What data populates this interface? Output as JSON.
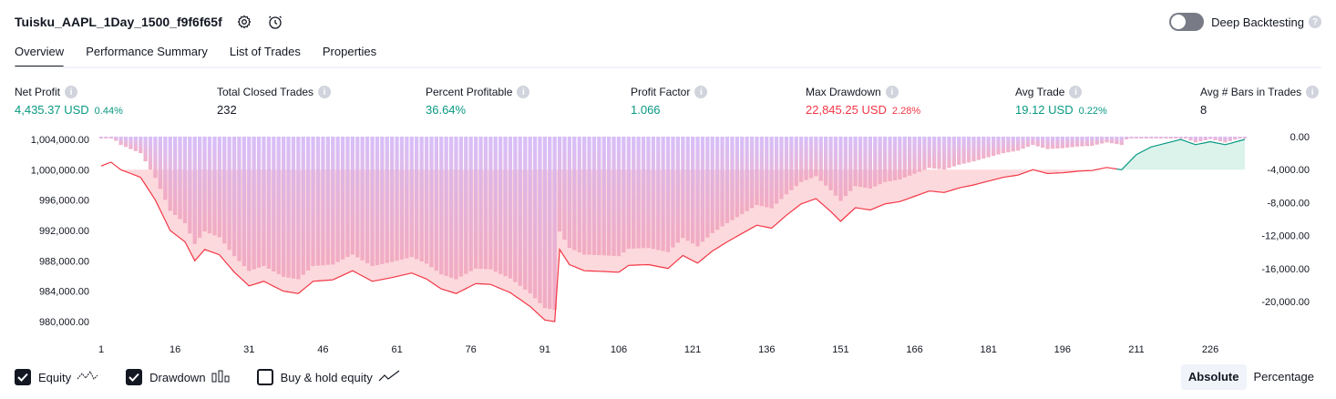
{
  "header": {
    "title": "Tuisku_AAPL_1Day_1500_f9f6f65f",
    "deep_backtesting_label": "Deep Backtesting",
    "deep_backtesting_enabled": false
  },
  "tabs": [
    {
      "label": "Overview",
      "active": true
    },
    {
      "label": "Performance Summary",
      "active": false
    },
    {
      "label": "List of Trades",
      "active": false
    },
    {
      "label": "Properties",
      "active": false
    }
  ],
  "metrics": {
    "net_profit": {
      "label": "Net Profit",
      "value": "4,435.37 USD",
      "pct": "0.44%"
    },
    "total_closed_trades": {
      "label": "Total Closed Trades",
      "value": "232"
    },
    "percent_profitable": {
      "label": "Percent Profitable",
      "value": "36.64%"
    },
    "profit_factor": {
      "label": "Profit Factor",
      "value": "1.066"
    },
    "max_drawdown": {
      "label": "Max Drawdown",
      "value": "22,845.25 USD",
      "pct": "2.28%"
    },
    "avg_trade": {
      "label": "Avg Trade",
      "value": "19.12 USD",
      "pct": "0.22%"
    },
    "avg_bars": {
      "label": "Avg # Bars in Trades",
      "value": "8"
    }
  },
  "chart_data": {
    "type": "area",
    "left_axis_ticks": [
      "1,004,000.00",
      "1,000,000.00",
      "996,000.00",
      "992,000.00",
      "988,000.00",
      "984,000.00",
      "980,000.00"
    ],
    "left_axis_values": [
      1004000,
      1000000,
      996000,
      992000,
      988000,
      984000,
      980000
    ],
    "right_axis_ticks": [
      "0.00",
      "-4,000.00",
      "-8,000.00",
      "-12,000.00",
      "-16,000.00",
      "-20,000.00"
    ],
    "right_axis_values": [
      0,
      -4000,
      -8000,
      -12000,
      -16000,
      -20000
    ],
    "x_ticks": [
      "1",
      "16",
      "31",
      "46",
      "61",
      "76",
      "91",
      "106",
      "121",
      "136",
      "151",
      "166",
      "181",
      "196",
      "211",
      "226"
    ],
    "x_tick_values": [
      1,
      16,
      31,
      46,
      61,
      76,
      91,
      106,
      121,
      136,
      151,
      166,
      181,
      196,
      211,
      226
    ],
    "x_range": [
      1,
      233
    ],
    "equity_knots": [
      [
        1,
        1000500
      ],
      [
        3,
        1001000
      ],
      [
        5,
        1000000
      ],
      [
        9,
        999000
      ],
      [
        12,
        996000
      ],
      [
        15,
        992000
      ],
      [
        18,
        990500
      ],
      [
        20,
        988000
      ],
      [
        22,
        989500
      ],
      [
        25,
        988800
      ],
      [
        28,
        986500
      ],
      [
        31,
        984700
      ],
      [
        34,
        985300
      ],
      [
        38,
        984000
      ],
      [
        41,
        983700
      ],
      [
        44,
        985300
      ],
      [
        48,
        985500
      ],
      [
        52,
        986700
      ],
      [
        56,
        985300
      ],
      [
        60,
        985800
      ],
      [
        64,
        986400
      ],
      [
        67,
        985600
      ],
      [
        70,
        984300
      ],
      [
        73,
        983700
      ],
      [
        77,
        985000
      ],
      [
        80,
        984900
      ],
      [
        84,
        983800
      ],
      [
        88,
        982000
      ],
      [
        91,
        980200
      ],
      [
        93,
        980000
      ],
      [
        94,
        989500
      ],
      [
        96,
        987500
      ],
      [
        99,
        986700
      ],
      [
        103,
        986600
      ],
      [
        106,
        986500
      ],
      [
        108,
        987400
      ],
      [
        112,
        987500
      ],
      [
        116,
        987000
      ],
      [
        119,
        988700
      ],
      [
        122,
        987700
      ],
      [
        125,
        989300
      ],
      [
        128,
        990500
      ],
      [
        131,
        991600
      ],
      [
        134,
        992700
      ],
      [
        137,
        992300
      ],
      [
        140,
        994000
      ],
      [
        143,
        995500
      ],
      [
        146,
        996200
      ],
      [
        149,
        994500
      ],
      [
        151,
        993200
      ],
      [
        154,
        995000
      ],
      [
        157,
        994700
      ],
      [
        160,
        995500
      ],
      [
        163,
        995800
      ],
      [
        166,
        996500
      ],
      [
        169,
        997200
      ],
      [
        172,
        997000
      ],
      [
        175,
        997600
      ],
      [
        178,
        998000
      ],
      [
        181,
        998500
      ],
      [
        184,
        999000
      ],
      [
        187,
        999300
      ],
      [
        190,
        1000000
      ],
      [
        193,
        999500
      ],
      [
        196,
        999600
      ],
      [
        199,
        999800
      ],
      [
        202,
        999900
      ],
      [
        205,
        1000300
      ],
      [
        208,
        1000000
      ],
      [
        211,
        1002000
      ],
      [
        214,
        1003000
      ],
      [
        217,
        1003500
      ],
      [
        220,
        1004000
      ],
      [
        223,
        1003300
      ],
      [
        226,
        1003700
      ],
      [
        229,
        1003300
      ],
      [
        233,
        1004000
      ]
    ],
    "series": [
      {
        "name": "Equity",
        "line_color": "#f23645",
        "line_color_positive": "#089981",
        "fill_color": "#fcd5d8"
      },
      {
        "name": "Drawdown",
        "bar_color_top": "#d1b3f7",
        "bar_color_bottom": "#f0a3bd"
      }
    ],
    "grid": false
  },
  "legend": [
    {
      "label": "Equity",
      "checked": true,
      "icon": "equity-line-icon"
    },
    {
      "label": "Drawdown",
      "checked": true,
      "icon": "drawdown-bars-icon"
    },
    {
      "label": "Buy & hold equity",
      "checked": false,
      "icon": "buy-hold-line-icon"
    }
  ],
  "view_modes": [
    {
      "label": "Absolute",
      "active": true
    },
    {
      "label": "Percentage",
      "active": false
    }
  ]
}
